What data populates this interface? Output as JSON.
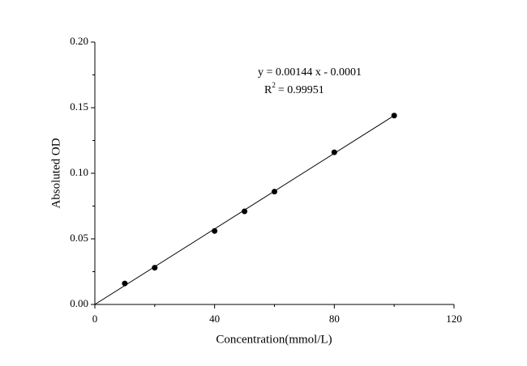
{
  "chart_data": {
    "type": "scatter",
    "x_label": "Concentration(mmol/L)",
    "y_label": "Absoluted OD",
    "annotation": "y = 0.00144 x - 0.0001",
    "r2_label": {
      "base": "R",
      "sup": "2",
      "rest": "= 0.99951"
    },
    "x": [
      10,
      20,
      40,
      50,
      60,
      80,
      100
    ],
    "values": [
      0.016,
      0.028,
      0.056,
      0.071,
      0.086,
      0.116,
      0.144
    ],
    "color": "#000000",
    "fit_line": {
      "x": [
        0,
        100
      ],
      "values": [
        0,
        0.144
      ]
    },
    "xlim": [
      0,
      120
    ],
    "xticks": [
      0,
      40,
      80,
      120
    ],
    "xminor": [
      20,
      60,
      100
    ],
    "ylim": [
      0,
      0.2
    ],
    "yticks": [
      {
        "value": 0,
        "label": "0.00"
      },
      0.05,
      {
        "value": 0.1,
        "label": "0.10"
      },
      0.15,
      {
        "value": 0.2,
        "label": "0.20"
      }
    ],
    "yminor": [
      0.025,
      0.075,
      0.125,
      0.175
    ],
    "grid": false
  }
}
